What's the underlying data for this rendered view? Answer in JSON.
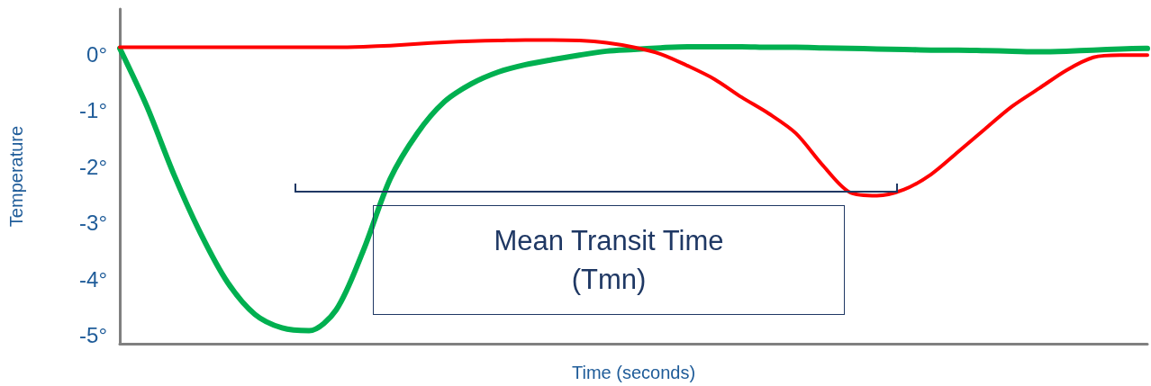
{
  "chart_data": {
    "type": "line",
    "xlabel": "Time (seconds)",
    "ylabel": "Temperature",
    "categories": [
      null,
      null,
      null,
      null,
      null,
      null,
      null,
      null,
      null,
      null,
      null,
      null,
      null,
      null,
      null,
      null,
      null,
      null,
      null,
      null,
      null,
      null,
      null,
      null,
      null,
      null,
      null,
      null,
      null,
      null,
      null,
      null,
      null,
      null,
      null,
      null,
      null,
      null,
      null
    ],
    "series": [
      {
        "color": "#00b050",
        "values": [
          0.1,
          -0.93,
          -2.14,
          -3.2,
          -4.07,
          -4.63,
          -4.87,
          -4.92,
          -4.55,
          -3.5,
          -2.22,
          -1.41,
          -0.85,
          -0.53,
          -0.32,
          -0.19,
          -0.1,
          -0.02,
          0.05,
          0.08,
          0.11,
          0.13,
          0.13,
          0.13,
          0.12,
          0.12,
          0.11,
          0.1,
          0.09,
          0.08,
          0.07,
          0.07,
          0.06,
          0.05,
          0.04,
          0.05,
          0.07,
          0.09,
          0.1
        ]
      },
      {
        "color": "#ff0000",
        "values": [
          0.12,
          0.12,
          0.12,
          0.12,
          0.12,
          0.12,
          0.12,
          0.12,
          0.12,
          0.13,
          0.15,
          0.18,
          0.21,
          0.23,
          0.24,
          0.25,
          0.25,
          0.24,
          0.2,
          0.12,
          0.0,
          -0.21,
          -0.45,
          -0.77,
          -1.06,
          -1.41,
          -1.98,
          -2.46,
          -2.52,
          -2.41,
          -2.14,
          -1.74,
          -1.33,
          -0.93,
          -0.61,
          -0.29,
          -0.06,
          -0.02,
          -0.02
        ]
      }
    ],
    "ylim": [
      -5.15,
      0.8
    ],
    "yticks": [
      {
        "value": 0,
        "label": "0°"
      },
      {
        "value": -1,
        "label": "-1°"
      },
      {
        "value": -2,
        "label": "-2°"
      },
      {
        "value": -3,
        "label": "-3°"
      },
      {
        "value": -4,
        "label": "-4°"
      },
      {
        "value": -5,
        "label": "-5°"
      }
    ],
    "tick_labels": "y",
    "grid": false,
    "marker": "none",
    "line_style": "solid",
    "annotations": [
      "Mean Transit Time\n(Tmn)"
    ]
  }
}
